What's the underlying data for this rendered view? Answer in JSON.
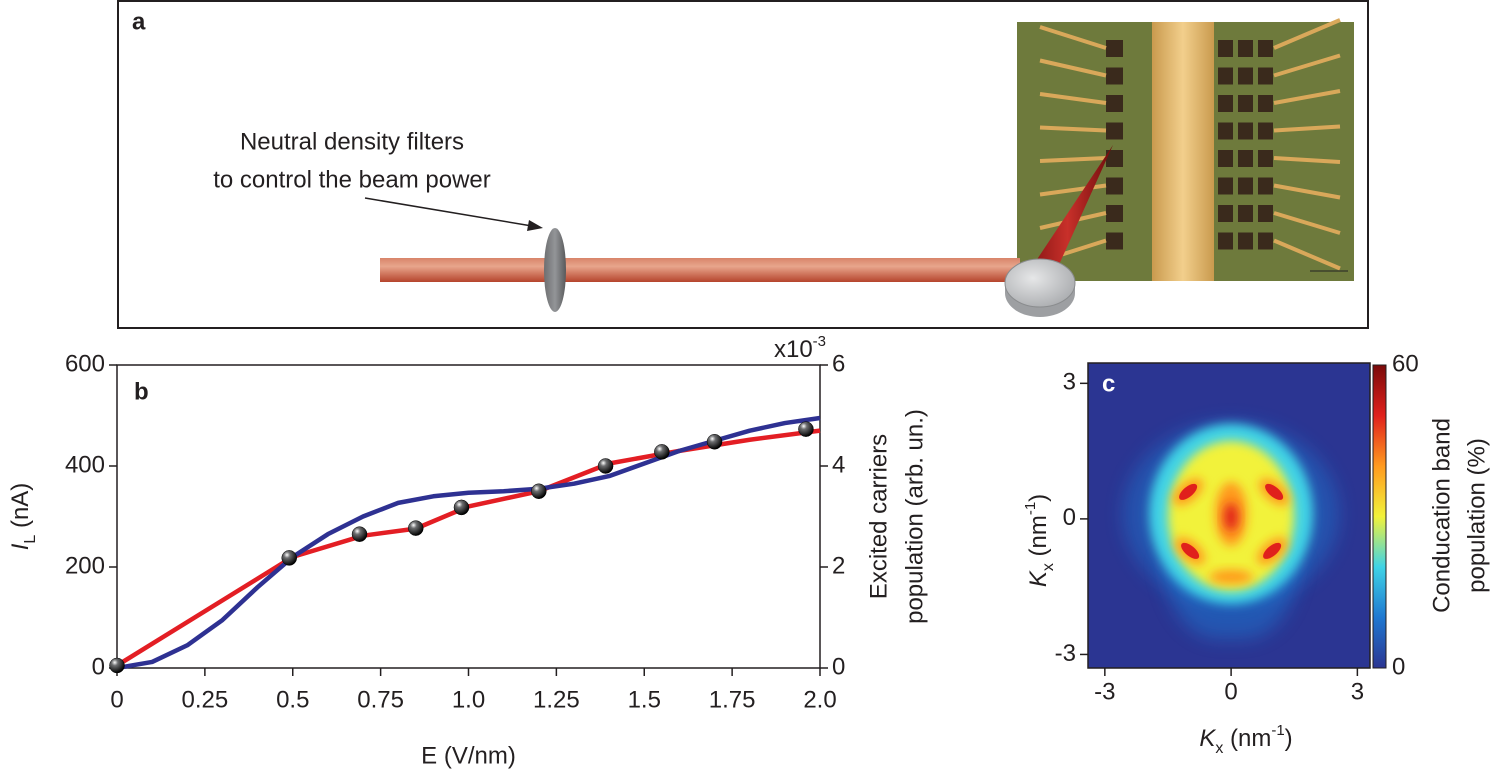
{
  "panel_a": {
    "label": "a",
    "annotation": [
      "Neutral density filters",
      "to control the beam power"
    ]
  },
  "chart_data": [
    {
      "type": "line",
      "panel_label": "b",
      "xlabel": "E (V/nm)",
      "ylabel_parts": [
        "I",
        "L",
        " (nA)"
      ],
      "y2label": [
        "Excited carriers",
        "population (arb. un.)"
      ],
      "y2_multiplier": [
        "x10",
        "-3"
      ],
      "xlim": [
        0,
        2
      ],
      "xticks": [
        0,
        0.25,
        0.5,
        0.75,
        {
          "value": 1,
          "label": "1.0"
        },
        1.25,
        1.5,
        1.75,
        {
          "value": 2,
          "label": "2.0"
        }
      ],
      "ylim": [
        0,
        600
      ],
      "yticks": [
        0,
        200,
        400,
        600
      ],
      "y2lim": [
        0,
        6
      ],
      "y2ticks": [
        0,
        2,
        4,
        6
      ],
      "series": [
        {
          "type": "line",
          "color": "#e31e24",
          "x": [
            0,
            0.5,
            0.7,
            0.85,
            1.0,
            1.2,
            1.4,
            1.6,
            1.8,
            2.0
          ],
          "values": [
            5,
            220,
            262,
            276,
            320,
            350,
            405,
            430,
            452,
            470
          ]
        },
        {
          "type": "line",
          "color": "#2e3192",
          "axis": "y2",
          "x": [
            0,
            0.1,
            0.2,
            0.3,
            0.4,
            0.5,
            0.6,
            0.7,
            0.8,
            0.9,
            1.0,
            1.1,
            1.2,
            1.3,
            1.4,
            1.5,
            1.6,
            1.7,
            1.8,
            1.9,
            2.0
          ],
          "values": [
            0,
            0.12,
            0.45,
            0.95,
            1.6,
            2.2,
            2.65,
            3.0,
            3.27,
            3.4,
            3.47,
            3.5,
            3.55,
            3.65,
            3.8,
            4.05,
            4.3,
            4.5,
            4.7,
            4.85,
            4.95
          ]
        },
        {
          "type": "scatter",
          "color": "#000000",
          "x": [
            0,
            0.49,
            0.69,
            0.85,
            0.98,
            1.2,
            1.39,
            1.55,
            1.7,
            1.96
          ],
          "values": [
            5,
            218,
            265,
            277,
            318,
            350,
            400,
            428,
            448,
            473
          ]
        }
      ]
    },
    {
      "type": "heatmap",
      "panel_label": "c",
      "xlabel_parts": [
        "K",
        "x",
        " (nm",
        "-1",
        ")"
      ],
      "ylabel_parts": [
        "K",
        "x",
        " (nm",
        "-1",
        ")"
      ],
      "xlim": [
        -3.4,
        3.3
      ],
      "xticks": [
        -3,
        0,
        3
      ],
      "ylim": [
        -3.3,
        3.45
      ],
      "yticks": [
        -3,
        0,
        3
      ],
      "colorbar": {
        "label": [
          "Conducation band",
          "population (%)"
        ],
        "lim": [
          0,
          60
        ],
        "ticks": [
          0,
          60
        ],
        "colormap": [
          "#2b3592",
          "#1f78d1",
          "#3fd3e6",
          "#f2f23a",
          "#ff9a1f",
          "#e0201c",
          "#7a0a0a"
        ]
      }
    }
  ]
}
